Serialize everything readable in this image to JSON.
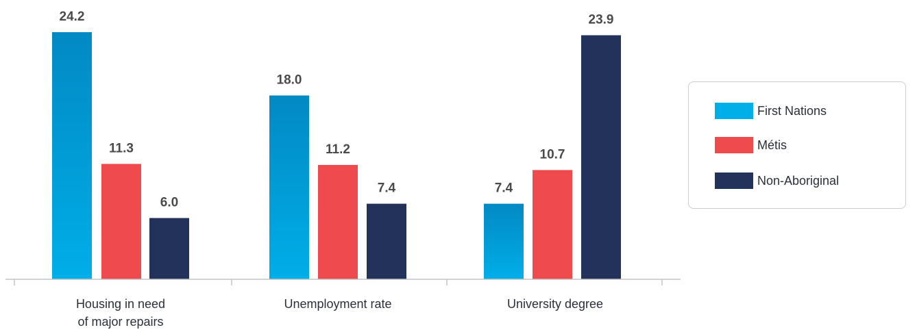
{
  "chart_data": {
    "type": "bar",
    "categories": [
      [
        "Housing in need",
        "of major repairs"
      ],
      [
        "Unemployment rate"
      ],
      [
        "University degree"
      ]
    ],
    "series": [
      {
        "name": "First Nations",
        "color": "#00aee8",
        "color_top": "#0289c4",
        "values": [
          24.2,
          18.0,
          7.4
        ]
      },
      {
        "name": "Métis",
        "color": "#ef4a4e",
        "values": [
          11.3,
          11.2,
          10.7
        ]
      },
      {
        "name": "Non-Aboriginal",
        "color": "#22325a",
        "values": [
          6.0,
          7.4,
          23.9
        ]
      }
    ],
    "data_labels": [
      [
        "24.2",
        "11.3",
        "6.0"
      ],
      [
        "18.0",
        "11.2",
        "7.4"
      ],
      [
        "7.4",
        "10.7",
        "23.9"
      ]
    ],
    "ylim": [
      0,
      24.2
    ],
    "grid": false,
    "legend_position": "right"
  }
}
